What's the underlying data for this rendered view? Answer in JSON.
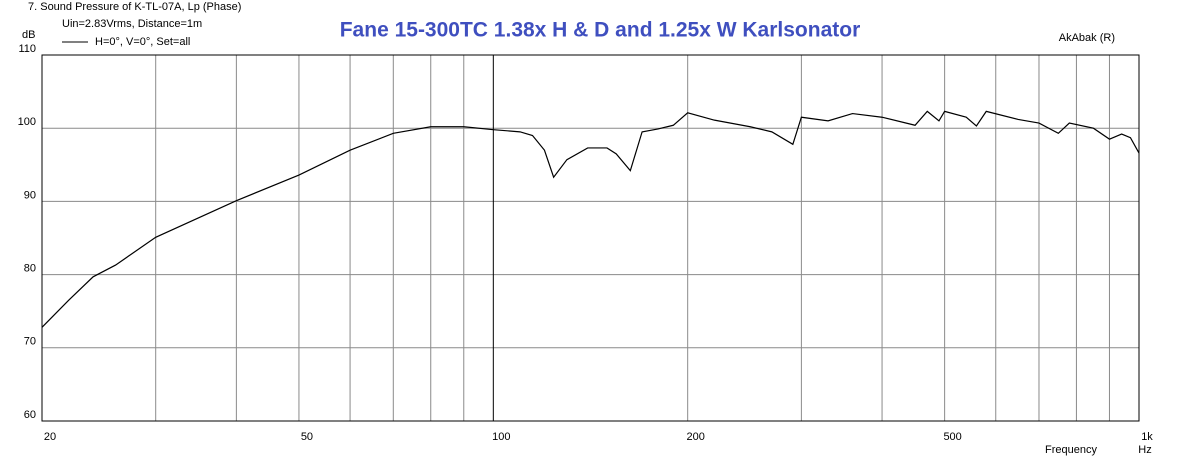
{
  "chart_data": {
    "type": "line",
    "title": "Fane 15-300TC 1.38x H & D and 1.25x W Karlsonator",
    "subtitle": "7. Sound Pressure of K-TL-07A, Lp (Phase)",
    "conditions": "Uin=2.83Vrms, Distance=1m",
    "credit": "AkAbak (R)",
    "ylabel": "dB",
    "xlabel": "Frequency",
    "x_unit": "Hz",
    "x_scale": "log",
    "grid": true,
    "xlim": [
      20,
      1000
    ],
    "ylim": [
      60,
      110
    ],
    "yticks": [
      60,
      70,
      80,
      90,
      100,
      110
    ],
    "xticks": [
      20,
      50,
      100,
      200,
      500,
      {
        "value": 1000,
        "label": "1k"
      }
    ],
    "x_minor_grid": [
      30,
      40,
      60,
      70,
      80,
      90,
      300,
      400,
      600,
      700,
      800,
      900
    ],
    "x": [
      20,
      22,
      24,
      26,
      30,
      40,
      50,
      60,
      70,
      80,
      90,
      100,
      110,
      115,
      120,
      124,
      130,
      140,
      150,
      155,
      163,
      170,
      180,
      190,
      200,
      220,
      250,
      270,
      291,
      300,
      330,
      360,
      400,
      450,
      470,
      490,
      500,
      540,
      560,
      580,
      650,
      700,
      750,
      780,
      850,
      900,
      940,
      970,
      1000
    ],
    "series": [
      {
        "name": "H=0°, V=0°, Set=all",
        "color": "#000000",
        "values": [
          72.8,
          76.5,
          79.7,
          81.3,
          85.1,
          90.1,
          93.6,
          97.0,
          99.3,
          100.2,
          100.2,
          99.8,
          99.5,
          99.0,
          97.0,
          93.3,
          95.7,
          97.3,
          97.3,
          96.5,
          94.2,
          99.5,
          99.9,
          100.4,
          102.1,
          101.1,
          100.2,
          99.5,
          97.8,
          101.5,
          101.0,
          102.0,
          101.5,
          100.4,
          102.3,
          101.0,
          102.3,
          101.5,
          100.3,
          102.3,
          101.2,
          100.7,
          99.3,
          100.7,
          100.0,
          98.5,
          99.2,
          98.7,
          96.6
        ]
      }
    ]
  }
}
